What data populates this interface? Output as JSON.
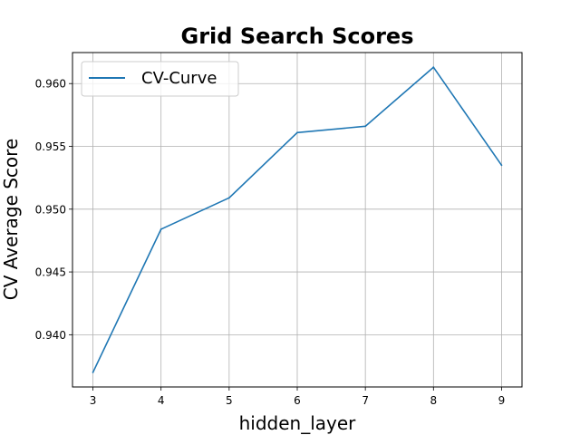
{
  "chart_data": {
    "type": "line",
    "title": "Grid Search Scores",
    "xlabel": "hidden_layer",
    "ylabel": "CV Average Score",
    "x": [
      3,
      4,
      5,
      6,
      7,
      8,
      9
    ],
    "series": [
      {
        "name": "CV-Curve",
        "color": "#1f77b4",
        "values": [
          0.937,
          0.9484,
          0.9509,
          0.9561,
          0.9566,
          0.9613,
          0.9535
        ]
      }
    ],
    "xticks": [
      3,
      4,
      5,
      6,
      7,
      8,
      9
    ],
    "yticks": [
      0.94,
      0.945,
      0.95,
      0.955,
      0.96
    ],
    "ytick_labels": [
      "0.940",
      "0.945",
      "0.950",
      "0.955",
      "0.960"
    ],
    "xlim": [
      2.7,
      9.3
    ],
    "ylim": [
      0.93584,
      0.96247
    ],
    "grid": true,
    "legend": "upper-left"
  }
}
